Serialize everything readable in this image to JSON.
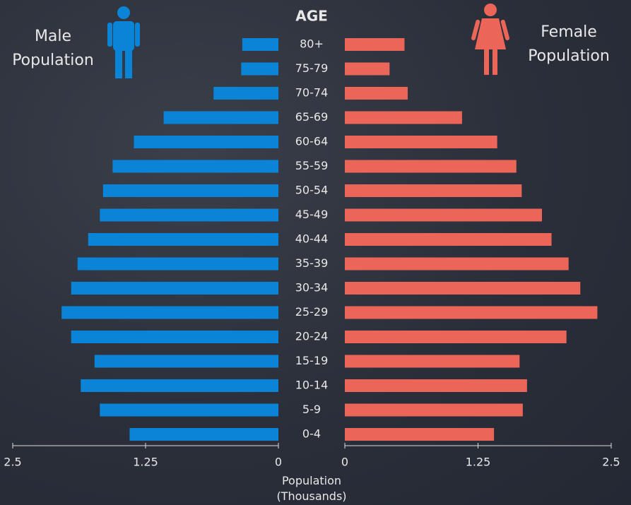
{
  "chart_data": {
    "type": "pyramid",
    "ylabel": "AGE",
    "xlabel": "Population (Thousands)",
    "categories": [
      "80+",
      "75-79",
      "70-74",
      "65-69",
      "60-64",
      "55-59",
      "50-54",
      "45-49",
      "40-44",
      "35-39",
      "30-34",
      "25-29",
      "20-24",
      "15-19",
      "10-14",
      "5-9",
      "0-4"
    ],
    "series": [
      {
        "name": "Male Population",
        "color": "#0a84d6",
        "side": "left",
        "values": [
          0.34,
          0.35,
          0.61,
          1.08,
          1.36,
          1.56,
          1.65,
          1.68,
          1.79,
          1.89,
          1.95,
          2.04,
          1.95,
          1.73,
          1.86,
          1.68,
          1.4
        ]
      },
      {
        "name": "Female Population",
        "color": "#ec6559",
        "side": "right",
        "values": [
          0.56,
          0.42,
          0.59,
          1.1,
          1.43,
          1.61,
          1.66,
          1.85,
          1.94,
          2.1,
          2.21,
          2.37,
          2.08,
          1.64,
          1.71,
          1.67,
          1.4
        ]
      }
    ],
    "xlim": [
      0,
      2.5
    ],
    "xticks": [
      0,
      1.25,
      2.5
    ]
  }
}
